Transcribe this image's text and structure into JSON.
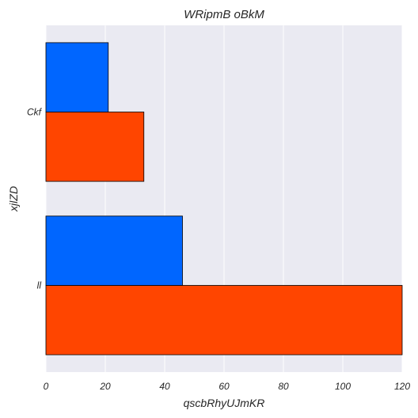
{
  "chart_data": {
    "type": "bar",
    "orientation": "horizontal",
    "title": "WRipmB oBkM",
    "xlabel": "qscbRhyUJmKR",
    "ylabel": "xjlZD",
    "categories": [
      "ll",
      "Ckf"
    ],
    "series": [
      {
        "color": "#ff4500",
        "values": [
          120,
          33
        ]
      },
      {
        "color": "#0066ff",
        "values": [
          46,
          21
        ]
      }
    ],
    "xlim": [
      0,
      120
    ],
    "xticks": [
      0,
      20,
      40,
      60,
      80,
      100,
      120
    ],
    "grid": true,
    "legend": "none",
    "colors": {
      "plot_background": "#eaeaf2",
      "grid": "#ffffff"
    }
  }
}
